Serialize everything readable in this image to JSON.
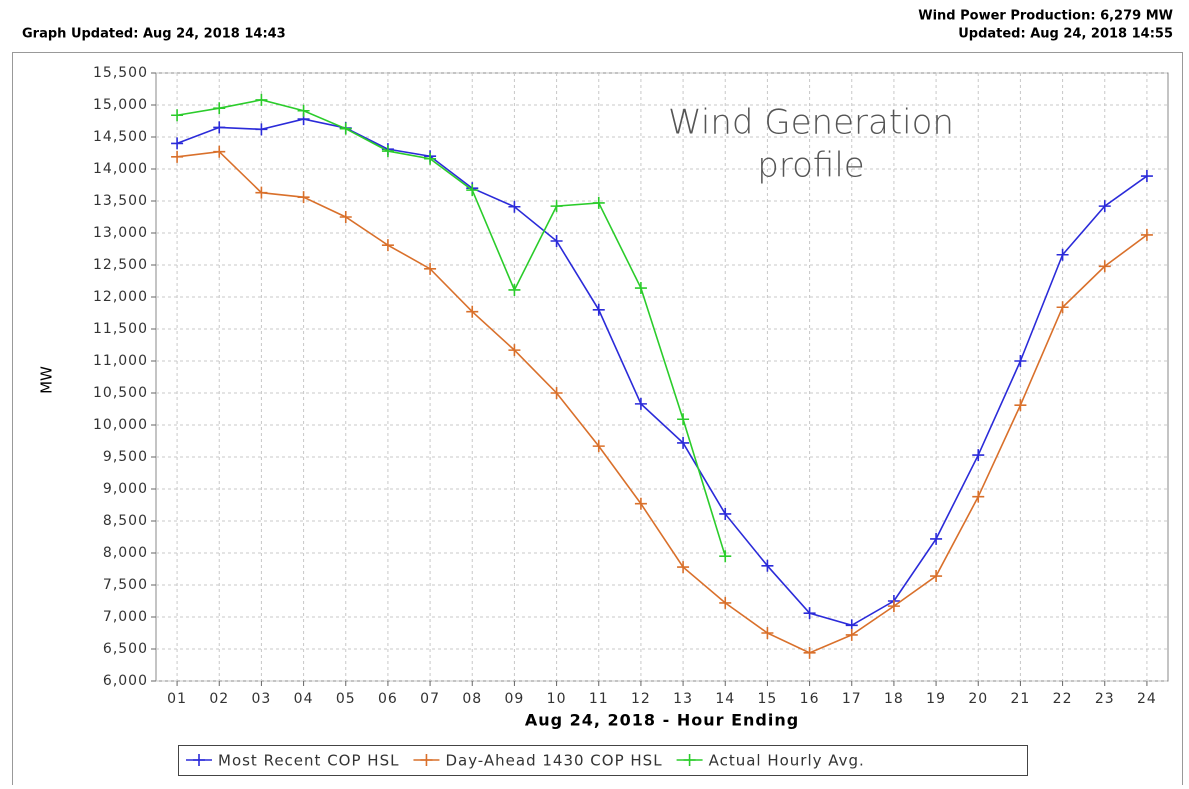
{
  "header": {
    "graph_updated": "Graph Updated: Aug 24, 2018 14:43",
    "production": "Wind Power Production: 6,279 MW",
    "updated": "Updated: Aug 24, 2018 14:55"
  },
  "chart_data": {
    "type": "line",
    "annotation": [
      "Wind Generation",
      "profile"
    ],
    "x_label": "Aug 24, 2018 - Hour Ending",
    "y_label": "MW",
    "categories": [
      "01",
      "02",
      "03",
      "04",
      "05",
      "06",
      "07",
      "08",
      "09",
      "10",
      "11",
      "12",
      "13",
      "14",
      "15",
      "16",
      "17",
      "18",
      "19",
      "20",
      "21",
      "22",
      "23",
      "24"
    ],
    "series": [
      {
        "name": "Most Recent COP HSL",
        "color": "#2b2bd9",
        "values": [
          14400,
          14650,
          14620,
          14780,
          14640,
          14310,
          14200,
          13700,
          13410,
          12875,
          11800,
          10330,
          9720,
          8610,
          7800,
          7060,
          6870,
          7250,
          8220,
          9530,
          11000,
          12660,
          13420,
          13890
        ]
      },
      {
        "name": "Day-Ahead 1430 COP HSL",
        "color": "#d9702b",
        "values": [
          14190,
          14270,
          13630,
          13560,
          13250,
          12810,
          12440,
          11770,
          11170,
          10500,
          9670,
          8770,
          7780,
          7220,
          6750,
          6440,
          6720,
          7170,
          7640,
          8880,
          10310,
          11840,
          12480,
          12970
        ]
      },
      {
        "name": "Actual Hourly Avg.",
        "color": "#2bcc2b",
        "values": [
          14840,
          14950,
          15080,
          14910,
          14630,
          14280,
          14160,
          13670,
          12110,
          13420,
          13470,
          12140,
          10090,
          7950,
          null,
          null,
          null,
          null,
          null,
          null,
          null,
          null,
          null,
          null
        ]
      }
    ],
    "ylim": [
      6000,
      15500
    ],
    "yticks": [
      {
        "value": 6000,
        "label": "6,000"
      },
      {
        "value": 6500,
        "label": "6,500"
      },
      {
        "value": 7000,
        "label": "7,000"
      },
      {
        "value": 7500,
        "label": "7,500"
      },
      {
        "value": 8000,
        "label": "8,000"
      },
      {
        "value": 8500,
        "label": "8,500"
      },
      {
        "value": 9000,
        "label": "9,000"
      },
      {
        "value": 9500,
        "label": "9,500"
      },
      {
        "value": 10000,
        "label": "10,000"
      },
      {
        "value": 10500,
        "label": "10,500"
      },
      {
        "value": 11000,
        "label": "11,000"
      },
      {
        "value": 11500,
        "label": "11,500"
      },
      {
        "value": 12000,
        "label": "12,000"
      },
      {
        "value": 12500,
        "label": "12,500"
      },
      {
        "value": 13000,
        "label": "13,000"
      },
      {
        "value": 13500,
        "label": "13,500"
      },
      {
        "value": 14000,
        "label": "14,000"
      },
      {
        "value": 14500,
        "label": "14,500"
      },
      {
        "value": 15000,
        "label": "15,000"
      },
      {
        "value": 15500,
        "label": "15,500"
      }
    ],
    "grid": true,
    "legend": "bottom"
  }
}
